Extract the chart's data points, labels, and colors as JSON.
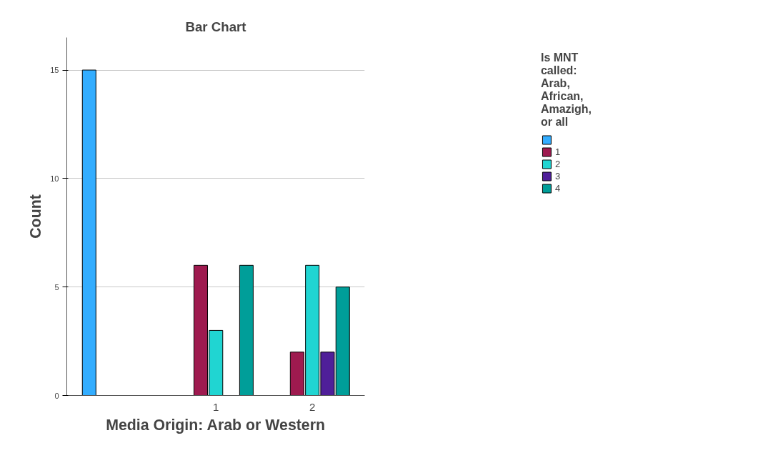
{
  "chart_data": {
    "type": "bar",
    "title": "Bar Chart",
    "xlabel": "Media Origin: Arab or Western",
    "ylabel": "Count",
    "legend_title": "Is MNT called: Arab, African, Amazigh, or all",
    "categories": [
      null,
      "1",
      "2"
    ],
    "series": [
      {
        "color": "#33adff",
        "values": [
          15,
          null,
          null
        ]
      },
      {
        "name": "1",
        "color": "#9e1a4f",
        "values": [
          null,
          6,
          2
        ]
      },
      {
        "name": "2",
        "color": "#20d5d2",
        "values": [
          null,
          3,
          6
        ]
      },
      {
        "name": "3",
        "color": "#4f1f99",
        "values": [
          null,
          null,
          2
        ]
      },
      {
        "name": "4",
        "color": "#009e99",
        "values": [
          null,
          6,
          5
        ]
      }
    ],
    "ylim": [
      0,
      16.5
    ],
    "yticks": [
      0,
      5,
      10,
      15
    ],
    "grid": "y",
    "legend": "top right"
  }
}
